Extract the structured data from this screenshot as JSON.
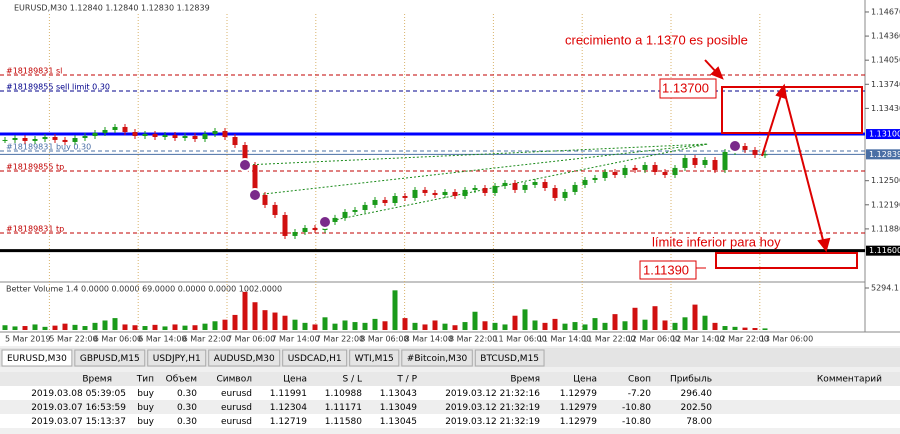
{
  "chart": {
    "header": "EURUSD,M30  1.12840 1.12840 1.12830 1.12839",
    "ylim": [
      1.11197,
      1.14824
    ],
    "yticks": [
      {
        "value": 1.1467,
        "label": "1.14670"
      },
      {
        "value": 1.1436,
        "label": "1.14360"
      },
      {
        "value": 1.1405,
        "label": "1.14050"
      },
      {
        "value": 1.1374,
        "label": "1.13740"
      },
      {
        "value": 1.1343,
        "label": "1.13430"
      },
      {
        "value": 1.125,
        "label": "1.12500"
      },
      {
        "value": 1.1219,
        "label": "1.12190"
      },
      {
        "value": 1.1188,
        "label": "1.11880"
      }
    ],
    "price_levels": [
      {
        "value": 1.131,
        "label": "1.13100",
        "color": "#0000ff"
      },
      {
        "value": 1.12839,
        "label": "1.12839",
        "color": "#4a6fa5"
      },
      {
        "value": 1.116,
        "label": "1.11600",
        "color": "#000000"
      }
    ],
    "order_lines": [
      {
        "value": 1.1386,
        "label": "#18189831 sl",
        "color": "#c00000"
      },
      {
        "value": 1.13654,
        "label": "#18189855 sell limit 0.30",
        "color": "#00008b"
      },
      {
        "value": 1.12882,
        "label": "#18189831 buy 0.30",
        "color": "#4a6fa5"
      },
      {
        "value": 1.12625,
        "label": "#18189855 tp",
        "color": "#c00000"
      },
      {
        "value": 1.11828,
        "label": "#18189831 tp",
        "color": "#c00000"
      }
    ],
    "candles": [
      1.13024,
      1.13049,
      1.13011,
      1.13036,
      1.13062,
      1.13024,
      1.12998,
      1.13049,
      1.13075,
      1.13114,
      1.13152,
      1.13191,
      1.13126,
      1.13075,
      1.13101,
      1.13062,
      1.13088,
      1.13049,
      1.13075,
      1.13036,
      1.13101,
      1.13139,
      1.13062,
      1.12959,
      1.12702,
      1.12316,
      1.12188,
      1.12059,
      1.11789,
      1.1184,
      1.11892,
      1.11866,
      1.11969,
      1.12021,
      1.12098,
      1.12123,
      1.12188,
      1.12252,
      1.12213,
      1.12303,
      1.12278,
      1.12381,
      1.12342,
      1.12316,
      1.12355,
      1.12303,
      1.12381,
      1.12406,
      1.12342,
      1.12432,
      1.12471,
      1.12381,
      1.12445,
      1.12483,
      1.12406,
      1.12278,
      1.12355,
      1.12445,
      1.12509,
      1.12535,
      1.12612,
      1.12573,
      1.12664,
      1.12638,
      1.12702,
      1.12612,
      1.12573,
      1.12664,
      1.12792,
      1.12702,
      1.12766,
      1.12638,
      1.12869,
      1.12946,
      1.12895,
      1.12831,
      1.12839
    ],
    "volume": {
      "title": "Better Volume 1.4 0.0000 0.0000 69.0000 0.0000 0.0000 1002.0000",
      "ylim": [
        0,
        5294.1
      ],
      "yticks": [
        5294.1
      ],
      "values": [
        600,
        450,
        500,
        700,
        400,
        550,
        800,
        650,
        500,
        900,
        1200,
        1500,
        700,
        600,
        500,
        650,
        450,
        700,
        550,
        600,
        800,
        1100,
        1300,
        1900,
        4800,
        3500,
        2500,
        2200,
        1800,
        1300,
        900,
        700,
        1600,
        800,
        1200,
        1000,
        900,
        1400,
        1100,
        5000,
        1500,
        900,
        700,
        1200,
        800,
        600,
        1000,
        2300,
        1100,
        900,
        700,
        1800,
        2600,
        1200,
        900,
        1400,
        800,
        1000,
        700,
        1500,
        900,
        2000,
        1100,
        2800,
        1300,
        3000,
        1200,
        900,
        1600,
        3200,
        1800,
        900,
        500,
        400,
        300,
        250,
        200
      ]
    },
    "x_labels": [
      "5 Mar 2019",
      "5 Mar 22:00",
      "6 Mar 06:00",
      "6 Mar 14:00",
      "6 Mar 22:00",
      "7 Mar 06:00",
      "7 Mar 14:00",
      "7 Mar 22:00",
      "8 Mar 06:00",
      "8 Mar 14:00",
      "8 Mar 22:00",
      "11 Mar 06:00",
      "11 Mar 14:00",
      "11 Mar 22:00",
      "12 Mar 06:00",
      "12 Mar 14:00",
      "12 Mar 22:00",
      "13 Mar 06:00"
    ],
    "annotations": {
      "growth": "crecimiento a 1.1370 es posible",
      "target": "1.13700",
      "limit_text": "límite inferior para hoy",
      "limit_value": "1.11390"
    }
  },
  "tabs": [
    "EURUSD,M30",
    "GBPUSD,M15",
    "USDJPY,H1",
    "AUDUSD,M30",
    "USDCAD,H1",
    "WTI,M15",
    "#Bitcoin,M30",
    "BTCUSD,M15"
  ],
  "table": {
    "columns": [
      "Время",
      "Тип",
      "Объем",
      "Символ",
      "Цена",
      "S / L",
      "T / P",
      "Время",
      "Цена",
      "Своп",
      "Прибыль",
      "Комментарий"
    ],
    "rows": [
      [
        "2019.03.08 05:39:05",
        "buy",
        "0.30",
        "eurusd",
        "1.11991",
        "1.10988",
        "1.13043",
        "2019.03.12 21:32:16",
        "1.12979",
        "-7.20",
        "296.40"
      ],
      [
        "2019.03.07 16:53:59",
        "buy",
        "0.30",
        "eurusd",
        "1.12304",
        "1.11171",
        "1.13049",
        "2019.03.12 21:32:19",
        "1.12979",
        "-10.80",
        "202.50"
      ],
      [
        "2019.03.07 15:13:37",
        "buy",
        "0.30",
        "eurusd",
        "1.12719",
        "1.11580",
        "1.13045",
        "2019.03.12 21:32:19",
        "1.12979",
        "-10.80",
        "78.00"
      ]
    ]
  }
}
